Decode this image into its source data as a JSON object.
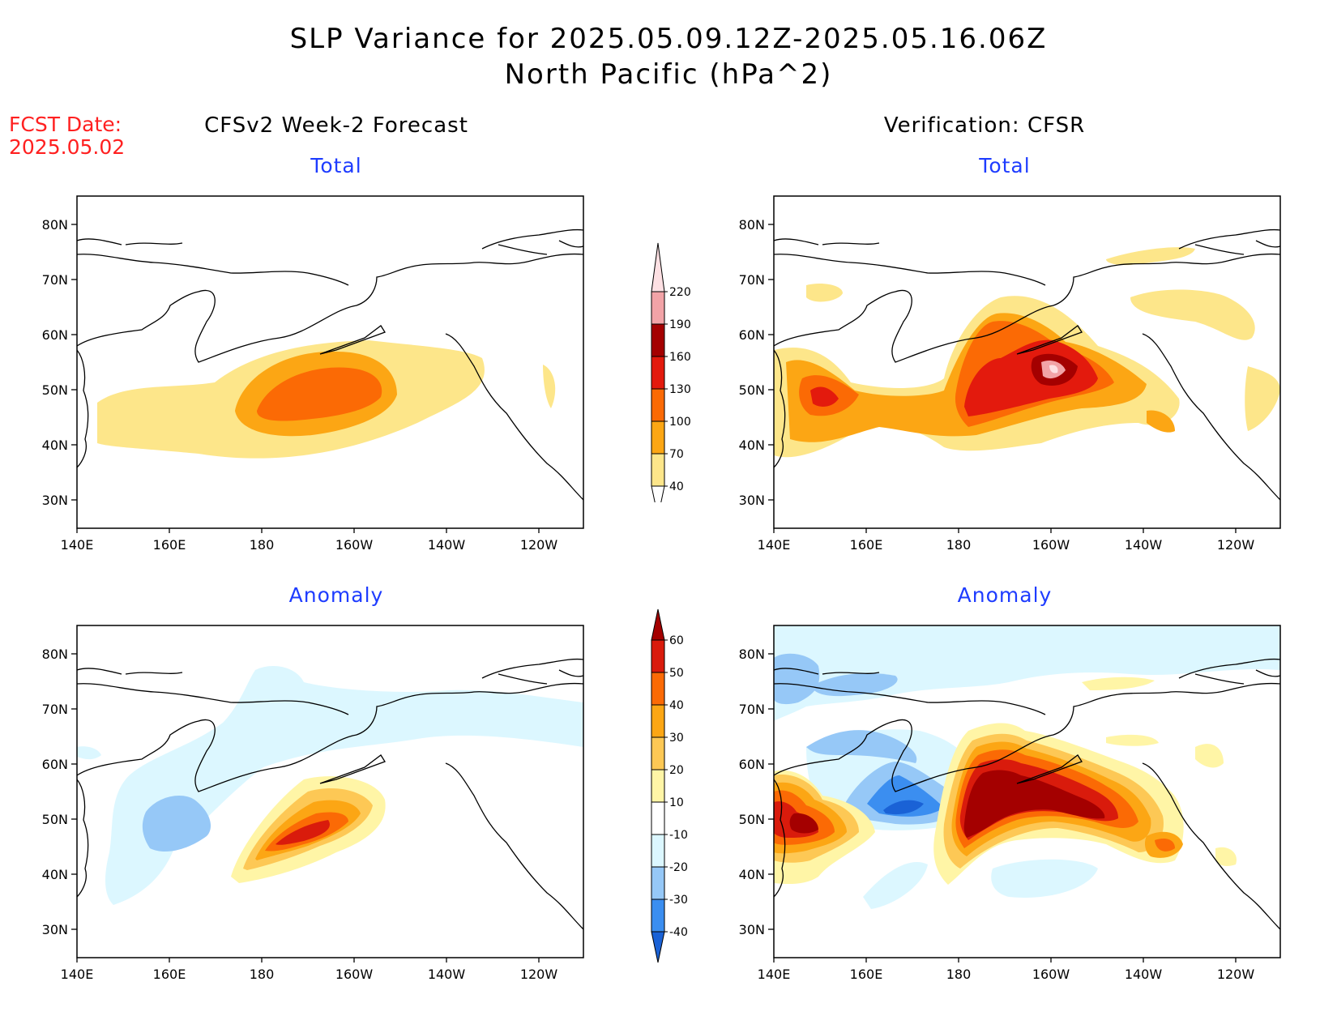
{
  "header": {
    "title_line1": "SLP Variance for 2025.05.09.12Z-2025.05.16.06Z",
    "title_line2": "North Pacific (hPa^2)",
    "fcst_label": "FCST Date:",
    "fcst_date": "2025.05.02"
  },
  "columns": {
    "left": "CFSv2 Week-2 Forecast",
    "right": "Verification: CFSR"
  },
  "panels": {
    "forecast_total": "Total",
    "verif_total": "Total",
    "forecast_anomaly": "Anomaly",
    "verif_anomaly": "Anomaly"
  },
  "axes": {
    "lat_labels": [
      "80N",
      "70N",
      "60N",
      "50N",
      "40N",
      "30N"
    ],
    "lon_labels": [
      "140E",
      "160E",
      "180",
      "160W",
      "140W",
      "120W"
    ]
  },
  "colorbars": {
    "total": {
      "labels": [
        "40",
        "70",
        "100",
        "130",
        "160",
        "190",
        "220"
      ],
      "colors": [
        "#fde68a",
        "#fca614",
        "#fb6a05",
        "#e31a0d",
        "#a40000",
        "#f2a3a7",
        "#fde0e3"
      ]
    },
    "anomaly": {
      "labels": [
        "-40",
        "-30",
        "-20",
        "-10",
        "10",
        "20",
        "30",
        "40",
        "50",
        "60"
      ],
      "colors": [
        "#1a62d6",
        "#3b8ef0",
        "#96c8f7",
        "#dcf7ff",
        "#ffffff",
        "#fff5a6",
        "#fdc855",
        "#fca614",
        "#fb6a05",
        "#d91b0c",
        "#a40000"
      ]
    }
  }
}
